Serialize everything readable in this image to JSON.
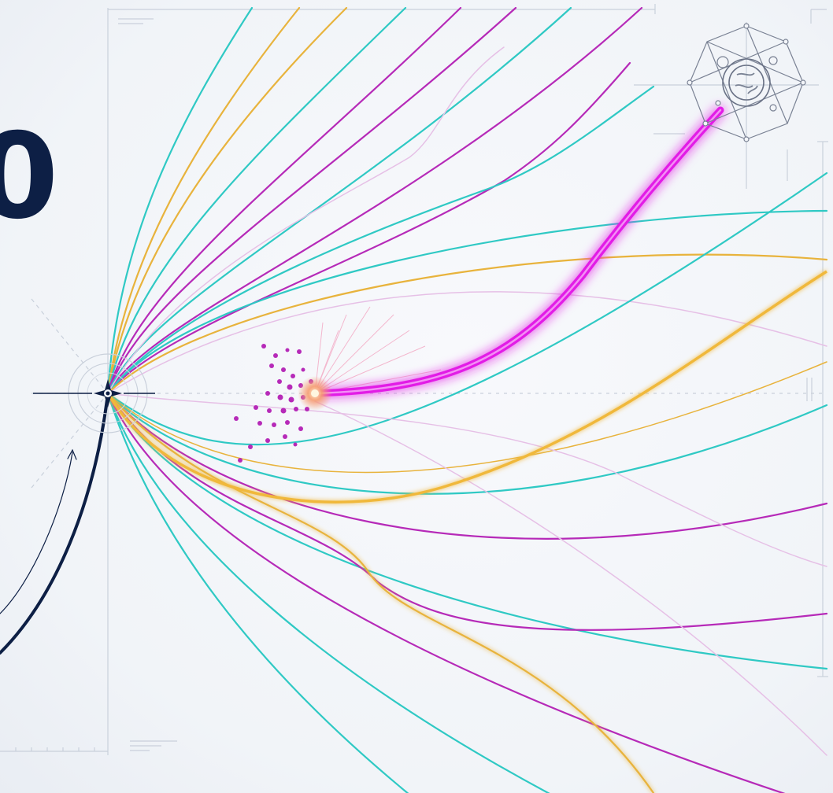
{
  "headline_fragment": "0",
  "colors": {
    "background": "#f3f5f9",
    "teal": "#2fc9c4",
    "gold": "#e8b33c",
    "magenta": "#b62ab8",
    "hot_magenta": "#e21ee6",
    "navy": "#0d1f45",
    "grid": "#c9d0db"
  },
  "icons": {
    "origin_marker": "compass-star-icon",
    "network_node": "network-globe-icon",
    "particle_cluster": "particle-burst-icon"
  }
}
